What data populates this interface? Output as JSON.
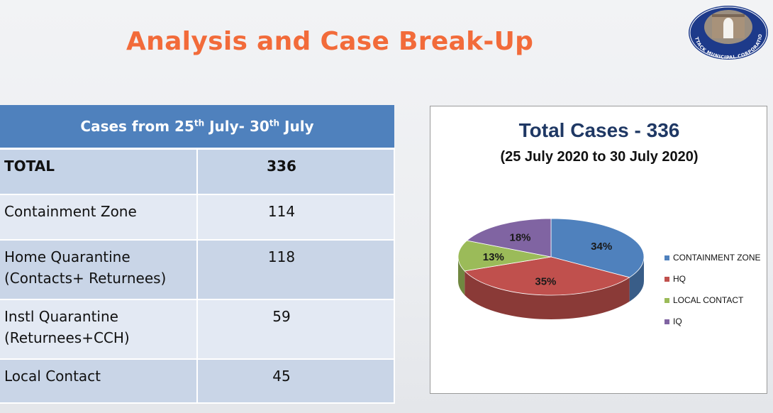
{
  "slide": {
    "title": "Analysis and Case Break-Up",
    "logo_text": "CUTTACK MUNICIPAL CORPORATION"
  },
  "table": {
    "header_prefix": "Cases from 25",
    "header_sup1": "th",
    "header_mid": " July- 30",
    "header_sup2": "th",
    "header_suffix": " July",
    "rows": [
      {
        "label_line1": "TOTAL",
        "label_line2": "",
        "value": "336"
      },
      {
        "label_line1": "Containment Zone",
        "label_line2": "",
        "value": "114"
      },
      {
        "label_line1": "Home Quarantine",
        "label_line2": "(Contacts+ Returnees)",
        "value": "118"
      },
      {
        "label_line1": "Instl Quarantine",
        "label_line2": "(Returnees+CCH)",
        "value": "59"
      },
      {
        "label_line1": "Local Contact",
        "label_line2": "",
        "value": "45"
      }
    ]
  },
  "chart_data": {
    "type": "pie",
    "title": "Total Cases - 336",
    "subtitle": "(25 July 2020 to 30 July 2020)",
    "legend_position": "right",
    "three_d": true,
    "slices": [
      {
        "name": "CONTAINMENT ZONE",
        "value": 34,
        "label": "34%",
        "color": "#4f81bd"
      },
      {
        "name": "HQ",
        "value": 35,
        "label": "35%",
        "color": "#c0504d"
      },
      {
        "name": "LOCAL CONTACT",
        "value": 13,
        "label": "13%",
        "color": "#9bbb59"
      },
      {
        "name": "IQ",
        "value": 18,
        "label": "18%",
        "color": "#8064a2"
      }
    ]
  }
}
